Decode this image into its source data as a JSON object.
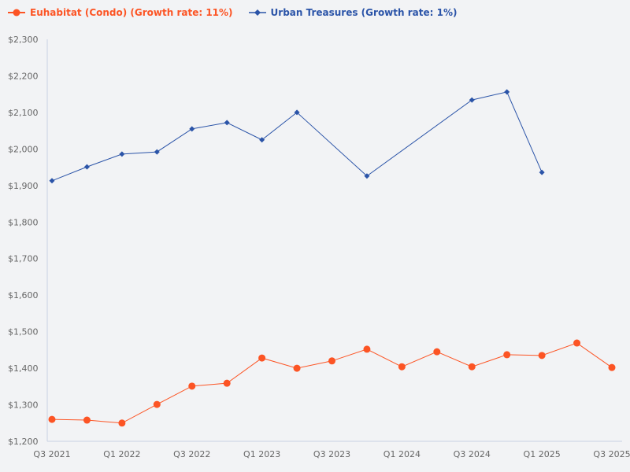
{
  "chart_data": {
    "type": "line",
    "title": "",
    "xlabel": "",
    "ylabel": "",
    "ylim": [
      1200,
      2300
    ],
    "y_ticks": [
      "$1,200",
      "$1,300",
      "$1,400",
      "$1,500",
      "$1,600",
      "$1,700",
      "$1,800",
      "$1,900",
      "$2,000",
      "$2,100",
      "$2,200",
      "$2,300"
    ],
    "y_tick_values": [
      1200,
      1300,
      1400,
      1500,
      1600,
      1700,
      1800,
      1900,
      2000,
      2100,
      2200,
      2300
    ],
    "categories": [
      "Q3 2021",
      "Q4 2021",
      "Q1 2022",
      "Q2 2022",
      "Q3 2022",
      "Q4 2022",
      "Q1 2023",
      "Q2 2023",
      "Q3 2023",
      "Q4 2023",
      "Q1 2024",
      "Q2 2024",
      "Q3 2024",
      "Q4 2024",
      "Q1 2025",
      "Q2 2025",
      "Q3 2025"
    ],
    "x_tick_labels": [
      "Q3 2021",
      "Q1 2022",
      "Q3 2022",
      "Q1 2023",
      "Q3 2023",
      "Q1 2024",
      "Q3 2024",
      "Q1 2025",
      "Q3 2025"
    ],
    "grid": false,
    "legend_position": "top-left",
    "series": [
      {
        "name": "Euhabitat (Condo) (Growth rate: 11%)",
        "color": "#fc5424",
        "marker": "circle",
        "values": [
          1260,
          1258,
          1250,
          1301,
          1351,
          1359,
          1428,
          1400,
          1420,
          1452,
          1404,
          1445,
          1404,
          1437,
          1435,
          1469,
          1402
        ]
      },
      {
        "name": "Urban Treasures (Growth rate: 1%)",
        "color": "#2b54a8",
        "marker": "diamond",
        "values": [
          1913,
          1951,
          1986,
          1992,
          2055,
          2072,
          2025,
          2100,
          null,
          1926,
          null,
          null,
          2134,
          2156,
          1936,
          null,
          null
        ]
      }
    ]
  }
}
